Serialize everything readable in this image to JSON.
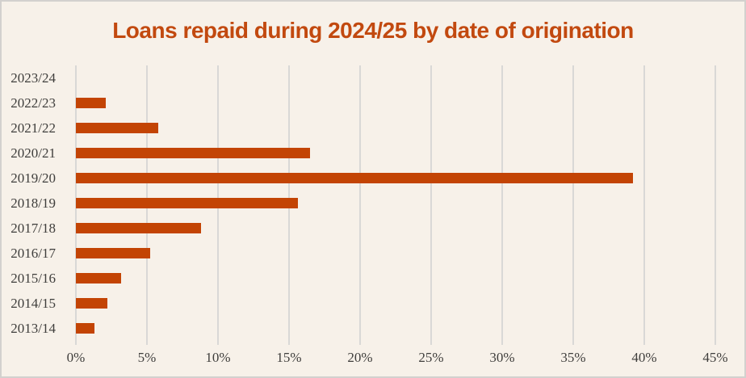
{
  "chart_data": {
    "type": "bar",
    "orientation": "horizontal",
    "title": "Loans repaid during 2024/25 by date of origination",
    "categories": [
      "2023/24",
      "2022/23",
      "2021/22",
      "2020/21",
      "2019/20",
      "2018/19",
      "2017/18",
      "2016/17",
      "2015/16",
      "2014/15",
      "2013/14"
    ],
    "values": [
      0,
      2.1,
      5.8,
      16.5,
      39.2,
      15.6,
      8.8,
      5.2,
      3.2,
      2.2,
      1.3
    ],
    "xlabel": "",
    "ylabel": "",
    "xlim": [
      0,
      45
    ],
    "x_ticks": [
      "0%",
      "5%",
      "10%",
      "15%",
      "20%",
      "25%",
      "30%",
      "35%",
      "40%",
      "45%"
    ],
    "x_tick_values": [
      0,
      5,
      10,
      15,
      20,
      25,
      30,
      35,
      40,
      45
    ],
    "grid": true,
    "legend": false,
    "colors": {
      "bar": "#c34404",
      "title": "#c2490f",
      "background": "#f7f1e9",
      "gridline": "#d9d8d6",
      "axis_label": "#3f3e3c",
      "frame_border": "#d3d1ce"
    }
  }
}
